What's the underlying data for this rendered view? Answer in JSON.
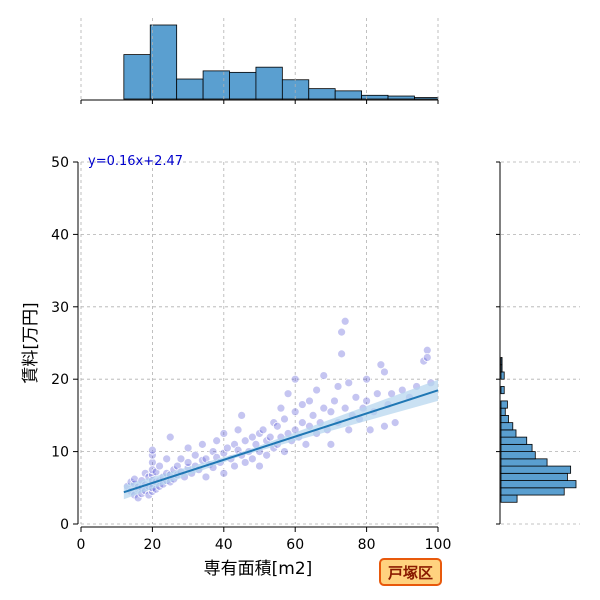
{
  "chart_data": {
    "type": "scatter",
    "xlabel": "専有面積[m2]",
    "ylabel": "賃料[万円]",
    "xlim": [
      0,
      100
    ],
    "ylim": [
      0,
      50
    ],
    "xticks": [
      0,
      20,
      40,
      60,
      80,
      100
    ],
    "yticks": [
      0,
      10,
      20,
      30,
      40,
      50
    ],
    "grid": true,
    "equation": "y=0.16x+2.47",
    "regression": {
      "slope": 0.16,
      "intercept": 2.47,
      "x_range": [
        12,
        100
      ]
    },
    "badge": "戸塚区",
    "colors": {
      "points": "#5a5ad8",
      "line": "#1f77b4",
      "hist": "#5a9fd0",
      "band": "#b3d4ee",
      "badge_fill": "#ffd27f",
      "badge_border": "#e8590c"
    },
    "points": [
      [
        13,
        5.2
      ],
      [
        14,
        4.5
      ],
      [
        14,
        5.8
      ],
      [
        15,
        4.0
      ],
      [
        15,
        5.5
      ],
      [
        15,
        6.2
      ],
      [
        16,
        4.8
      ],
      [
        16,
        5.1
      ],
      [
        16,
        3.6
      ],
      [
        17,
        5.0
      ],
      [
        17,
        6.0
      ],
      [
        17,
        4.2
      ],
      [
        18,
        5.4
      ],
      [
        18,
        4.6
      ],
      [
        18,
        7.0
      ],
      [
        19,
        5.2
      ],
      [
        19,
        6.5
      ],
      [
        19,
        4.0
      ],
      [
        20,
        5.5
      ],
      [
        20,
        6.8
      ],
      [
        20,
        8.5
      ],
      [
        20,
        9.5
      ],
      [
        20,
        10.2
      ],
      [
        20,
        7.5
      ],
      [
        20,
        4.5
      ],
      [
        20,
        5.0
      ],
      [
        20,
        6.0
      ],
      [
        21,
        5.8
      ],
      [
        21,
        7.2
      ],
      [
        21,
        4.8
      ],
      [
        22,
        6.0
      ],
      [
        22,
        5.2
      ],
      [
        22,
        8.0
      ],
      [
        23,
        6.5
      ],
      [
        23,
        5.5
      ],
      [
        24,
        7.0
      ],
      [
        24,
        6.0
      ],
      [
        24,
        9.0
      ],
      [
        25,
        6.8
      ],
      [
        25,
        5.8
      ],
      [
        25,
        12.0
      ],
      [
        26,
        7.5
      ],
      [
        26,
        6.2
      ],
      [
        27,
        8.0
      ],
      [
        27,
        6.8
      ],
      [
        28,
        7.2
      ],
      [
        28,
        9.0
      ],
      [
        29,
        6.5
      ],
      [
        30,
        7.8
      ],
      [
        30,
        8.5
      ],
      [
        30,
        10.5
      ],
      [
        31,
        7.0
      ],
      [
        32,
        8.0
      ],
      [
        32,
        9.5
      ],
      [
        33,
        7.5
      ],
      [
        34,
        8.8
      ],
      [
        34,
        11.0
      ],
      [
        35,
        9.0
      ],
      [
        35,
        6.5
      ],
      [
        36,
        8.2
      ],
      [
        37,
        10.0
      ],
      [
        37,
        7.8
      ],
      [
        38,
        9.2
      ],
      [
        38,
        11.5
      ],
      [
        39,
        8.5
      ],
      [
        40,
        9.8
      ],
      [
        40,
        7.0
      ],
      [
        40,
        12.5
      ],
      [
        41,
        10.5
      ],
      [
        42,
        9.0
      ],
      [
        43,
        11.0
      ],
      [
        43,
        8.0
      ],
      [
        44,
        10.2
      ],
      [
        44,
        13.0
      ],
      [
        45,
        9.5
      ],
      [
        45,
        15.0
      ],
      [
        46,
        11.5
      ],
      [
        46,
        8.5
      ],
      [
        47,
        10.0
      ],
      [
        48,
        12.0
      ],
      [
        48,
        9.0
      ],
      [
        49,
        11.0
      ],
      [
        50,
        12.5
      ],
      [
        50,
        10.0
      ],
      [
        50,
        8.0
      ],
      [
        51,
        13.0
      ],
      [
        52,
        11.5
      ],
      [
        52,
        9.5
      ],
      [
        53,
        12.0
      ],
      [
        54,
        10.5
      ],
      [
        54,
        14.0
      ],
      [
        55,
        11.0
      ],
      [
        55,
        13.5
      ],
      [
        56,
        12.0
      ],
      [
        56,
        16.0
      ],
      [
        57,
        10.0
      ],
      [
        57,
        14.5
      ],
      [
        58,
        12.5
      ],
      [
        58,
        18.0
      ],
      [
        59,
        11.5
      ],
      [
        60,
        13.0
      ],
      [
        60,
        15.5
      ],
      [
        60,
        20.0
      ],
      [
        61,
        12.0
      ],
      [
        62,
        14.0
      ],
      [
        62,
        16.5
      ],
      [
        63,
        11.0
      ],
      [
        64,
        13.5
      ],
      [
        64,
        17.0
      ],
      [
        65,
        15.0
      ],
      [
        66,
        12.5
      ],
      [
        66,
        18.5
      ],
      [
        67,
        14.0
      ],
      [
        68,
        16.0
      ],
      [
        68,
        20.5
      ],
      [
        69,
        13.0
      ],
      [
        70,
        15.5
      ],
      [
        70,
        11.0
      ],
      [
        71,
        17.0
      ],
      [
        72,
        19.0
      ],
      [
        72,
        14.0
      ],
      [
        73,
        23.5
      ],
      [
        73,
        26.5
      ],
      [
        74,
        28.0
      ],
      [
        74,
        16.0
      ],
      [
        75,
        19.5
      ],
      [
        75,
        13.0
      ],
      [
        76,
        15.0
      ],
      [
        77,
        17.5
      ],
      [
        78,
        14.5
      ],
      [
        79,
        16.0
      ],
      [
        80,
        17.0
      ],
      [
        80,
        20.0
      ],
      [
        81,
        13.0
      ],
      [
        82,
        15.5
      ],
      [
        83,
        18.0
      ],
      [
        84,
        22.0
      ],
      [
        85,
        13.5
      ],
      [
        85,
        21.0
      ],
      [
        86,
        16.5
      ],
      [
        87,
        18.0
      ],
      [
        88,
        14.0
      ],
      [
        90,
        18.5
      ],
      [
        92,
        17.5
      ],
      [
        94,
        19.0
      ],
      [
        96,
        22.5
      ],
      [
        97,
        24.0
      ],
      [
        97,
        23.0
      ],
      [
        98,
        19.5
      ]
    ],
    "top_hist": {
      "bin_edges": [
        12,
        19.4,
        26.8,
        34.2,
        41.6,
        49,
        56.4,
        63.8,
        71.2,
        78.6,
        86,
        93.4,
        100
      ],
      "counts": [
        60,
        100,
        27,
        38,
        36,
        43,
        26,
        14,
        11,
        5,
        4,
        2
      ]
    },
    "right_hist": {
      "bin_edges": [
        3,
        4,
        5,
        6,
        7,
        8,
        9,
        10,
        11,
        12,
        13,
        14,
        15,
        16,
        17,
        18,
        19,
        20,
        21,
        22,
        23,
        24,
        25,
        26,
        27,
        28,
        29,
        30,
        31,
        32,
        33,
        34,
        35,
        36,
        37,
        38,
        39,
        40,
        41,
        42,
        43,
        44,
        45,
        46,
        47,
        48,
        49,
        50
      ],
      "counts": [
        15,
        59,
        70,
        62,
        65,
        43,
        32,
        29,
        24,
        14,
        11,
        7,
        4,
        6,
        0,
        3,
        0,
        3,
        1,
        1,
        0,
        0,
        0,
        0,
        0,
        0,
        0,
        0,
        0,
        0,
        0,
        0,
        0,
        0,
        0,
        0,
        0,
        0,
        0,
        0,
        0,
        0,
        0,
        0,
        0,
        0,
        0
      ]
    }
  }
}
